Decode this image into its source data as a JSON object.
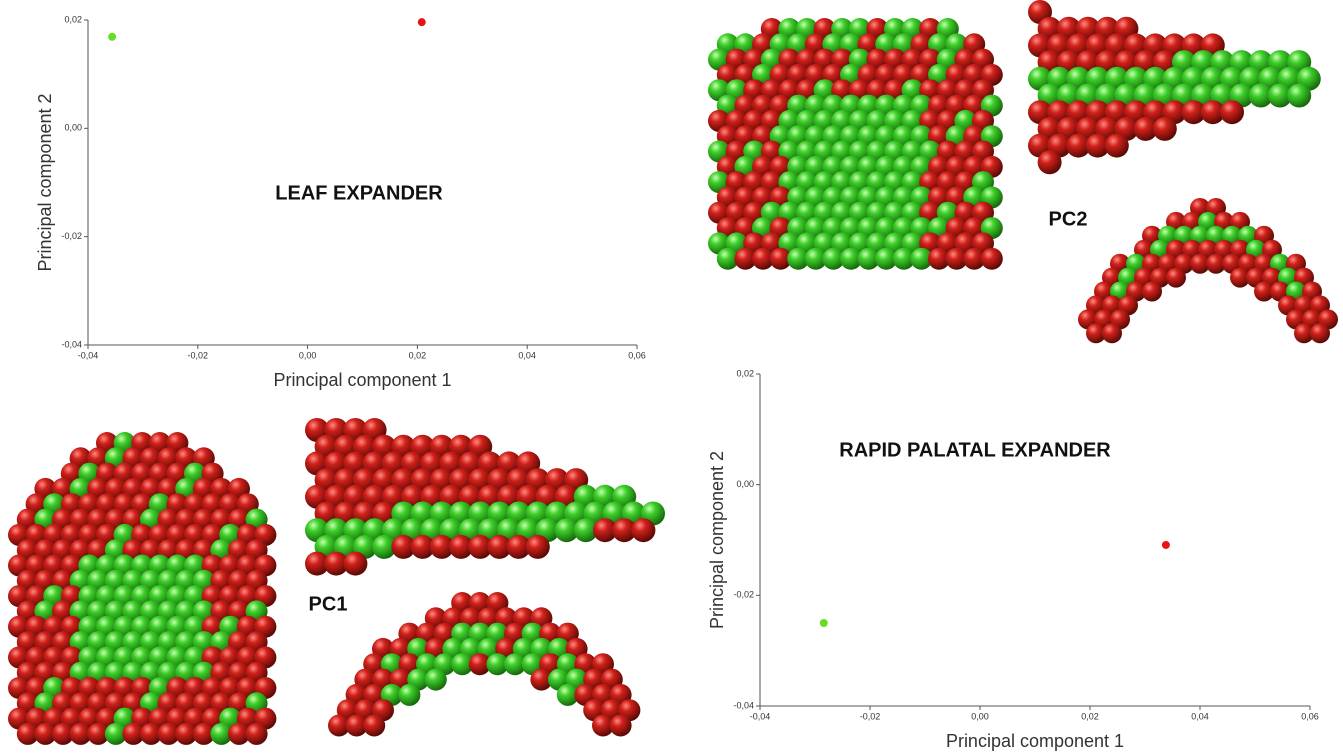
{
  "chart_data": [
    {
      "type": "scatter",
      "title": "LEAF EXPANDER",
      "x_label": "Principal component 1",
      "y_label": "Principal component 2",
      "xlim": [
        -0.04,
        0.06
      ],
      "ylim": [
        -0.04,
        0.02
      ],
      "xticks": [
        {
          "value": -0.04,
          "label": "-0,04"
        },
        {
          "value": -0.02,
          "label": "-0,02"
        },
        {
          "value": 0,
          "label": "0,00"
        },
        {
          "value": 0.02,
          "label": "0,02"
        },
        {
          "value": 0.04,
          "label": "0,04"
        },
        {
          "value": 0.06,
          "label": "0,06"
        }
      ],
      "yticks": [
        {
          "value": -0.04,
          "label": "-0,04"
        },
        {
          "value": -0.02,
          "label": "-0,02"
        },
        {
          "value": 0,
          "label": "0,00"
        },
        {
          "value": 0.02,
          "label": "0,02"
        }
      ],
      "series": [
        {
          "color": "#66dd22",
          "x": [
            -0.0356
          ],
          "values": [
            0.0169
          ]
        },
        {
          "color": "#ee1111",
          "x": [
            0.0208
          ],
          "values": [
            0.0196
          ]
        }
      ]
    },
    {
      "type": "scatter",
      "title": "RAPID PALATAL EXPANDER",
      "x_label": "Principal component 1",
      "y_label": "Principal component 2",
      "xlim": [
        -0.04,
        0.06
      ],
      "ylim": [
        -0.04,
        0.02
      ],
      "xticks": [
        {
          "value": -0.04,
          "label": "-0,04"
        },
        {
          "value": -0.02,
          "label": "-0,02"
        },
        {
          "value": 0,
          "label": "0,00"
        },
        {
          "value": 0.02,
          "label": "0,02"
        },
        {
          "value": 0.04,
          "label": "0,04"
        },
        {
          "value": 0.06,
          "label": "0,06"
        }
      ],
      "yticks": [
        {
          "value": -0.04,
          "label": "-0,04"
        },
        {
          "value": -0.02,
          "label": "-0,02"
        },
        {
          "value": 0,
          "label": "0,00"
        },
        {
          "value": 0.02,
          "label": "0,02"
        }
      ],
      "series": [
        {
          "color": "#66dd22",
          "x": [
            -0.0284
          ],
          "values": [
            -0.025
          ]
        },
        {
          "color": "#ee1111",
          "x": [
            0.0338
          ],
          "values": [
            -0.0109
          ]
        }
      ]
    }
  ],
  "view_labels": [
    "PC1",
    "PC2"
  ]
}
